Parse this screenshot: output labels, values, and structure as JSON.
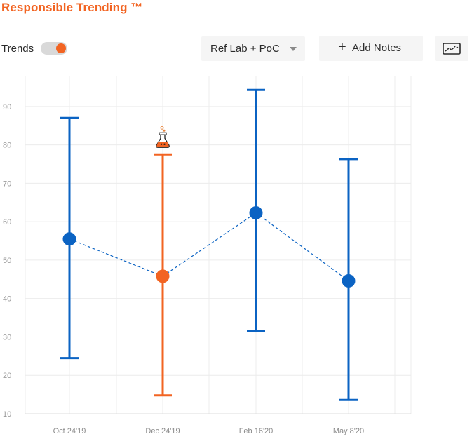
{
  "header": {
    "title": "Responsible Trending ™"
  },
  "controls": {
    "trends_label": "Trends",
    "trends_on": true,
    "dropdown_value": "Ref Lab + PoC",
    "add_notes_label": "Add Notes",
    "icons": {
      "plus": "plus-icon",
      "chart": "chart-view-icon",
      "flask": "lab-flask-icon",
      "caret": "caret-down-icon"
    }
  },
  "colors": {
    "accent": "#f26422",
    "series": "#0b63c3",
    "grid": "#ececec"
  },
  "chart_data": {
    "type": "scatter",
    "title": "",
    "xlabel": "",
    "ylabel": "",
    "ylim": [
      10,
      98
    ],
    "yticks": [
      10,
      20,
      30,
      40,
      50,
      60,
      70,
      80,
      90
    ],
    "grid": true,
    "categories": [
      "Oct 24'19",
      "Dec 24'19",
      "Feb 16'20",
      "May 8'20"
    ],
    "points": [
      {
        "label": "Oct 24'19",
        "value": 55.5,
        "low": 24.5,
        "high": 87.0,
        "highlight": false
      },
      {
        "label": "Dec 24'19",
        "value": 45.8,
        "low": 14.8,
        "high": 77.5,
        "highlight": true
      },
      {
        "label": "Feb 16'20",
        "value": 62.3,
        "low": 31.5,
        "high": 94.3,
        "highlight": false
      },
      {
        "label": "May 8'20",
        "value": 44.6,
        "low": 13.6,
        "high": 76.3,
        "highlight": false
      }
    ],
    "connector": "dashed"
  }
}
